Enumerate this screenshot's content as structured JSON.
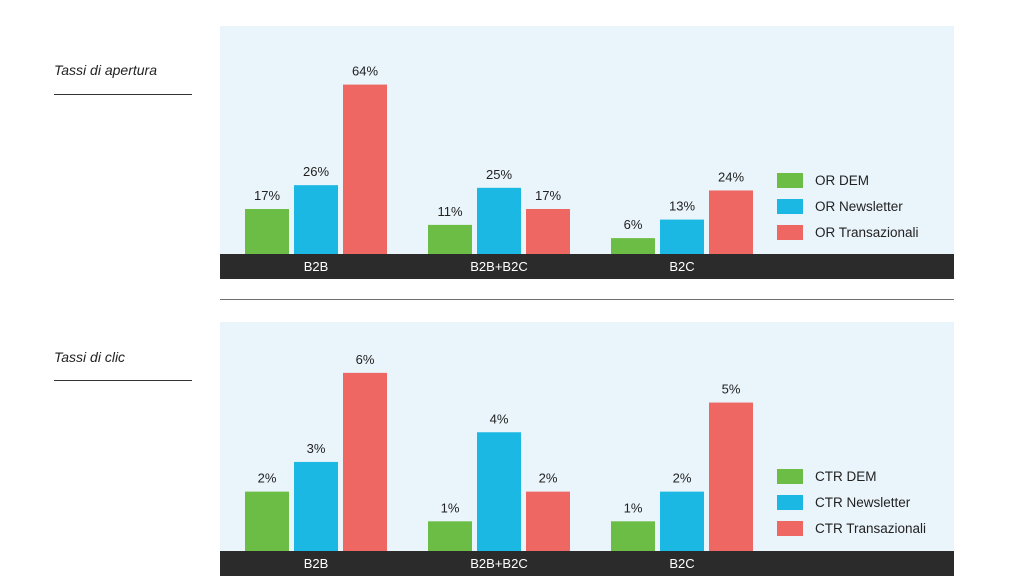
{
  "chart_data": [
    {
      "type": "bar",
      "title": "Tassi di apertura",
      "categories": [
        "B2B",
        "B2B+B2C",
        "B2C"
      ],
      "series": [
        {
          "name": "OR DEM",
          "values": [
            17,
            11,
            6
          ],
          "color": "#6cbd45"
        },
        {
          "name": "OR Newsletter",
          "values": [
            26,
            25,
            13
          ],
          "color": "#1ab8e3"
        },
        {
          "name": "OR Transazionali",
          "values": [
            64,
            17,
            24
          ],
          "color": "#ef6763"
        }
      ],
      "value_labels": [
        [
          "17%",
          "11%",
          "6%"
        ],
        [
          "26%",
          "25%",
          "13%"
        ],
        [
          "64%",
          "17%",
          "24%"
        ]
      ],
      "unit": "%",
      "ylim": [
        0,
        68
      ],
      "legend": "right",
      "grid": false,
      "background": "#e9f4fb",
      "axis_band_color": "#2b2b2b"
    },
    {
      "type": "bar",
      "title": "Tassi di clic",
      "categories": [
        "B2B",
        "B2B+B2C",
        "B2C"
      ],
      "series": [
        {
          "name": "CTR DEM",
          "values": [
            2,
            1,
            1
          ],
          "color": "#6cbd45"
        },
        {
          "name": "CTR Newsletter",
          "values": [
            3,
            4,
            2
          ],
          "color": "#1ab8e3"
        },
        {
          "name": "CTR Transazionali",
          "values": [
            6,
            2,
            5
          ],
          "color": "#ef6763"
        }
      ],
      "value_labels": [
        [
          "2%",
          "1%",
          "1%"
        ],
        [
          "3%",
          "4%",
          "2%"
        ],
        [
          "6%",
          "2%",
          "5%"
        ]
      ],
      "unit": "%",
      "ylim": [
        0,
        6.4
      ],
      "legend": "right",
      "grid": false,
      "background": "#e9f4fb",
      "axis_band_color": "#2b2b2b"
    }
  ]
}
